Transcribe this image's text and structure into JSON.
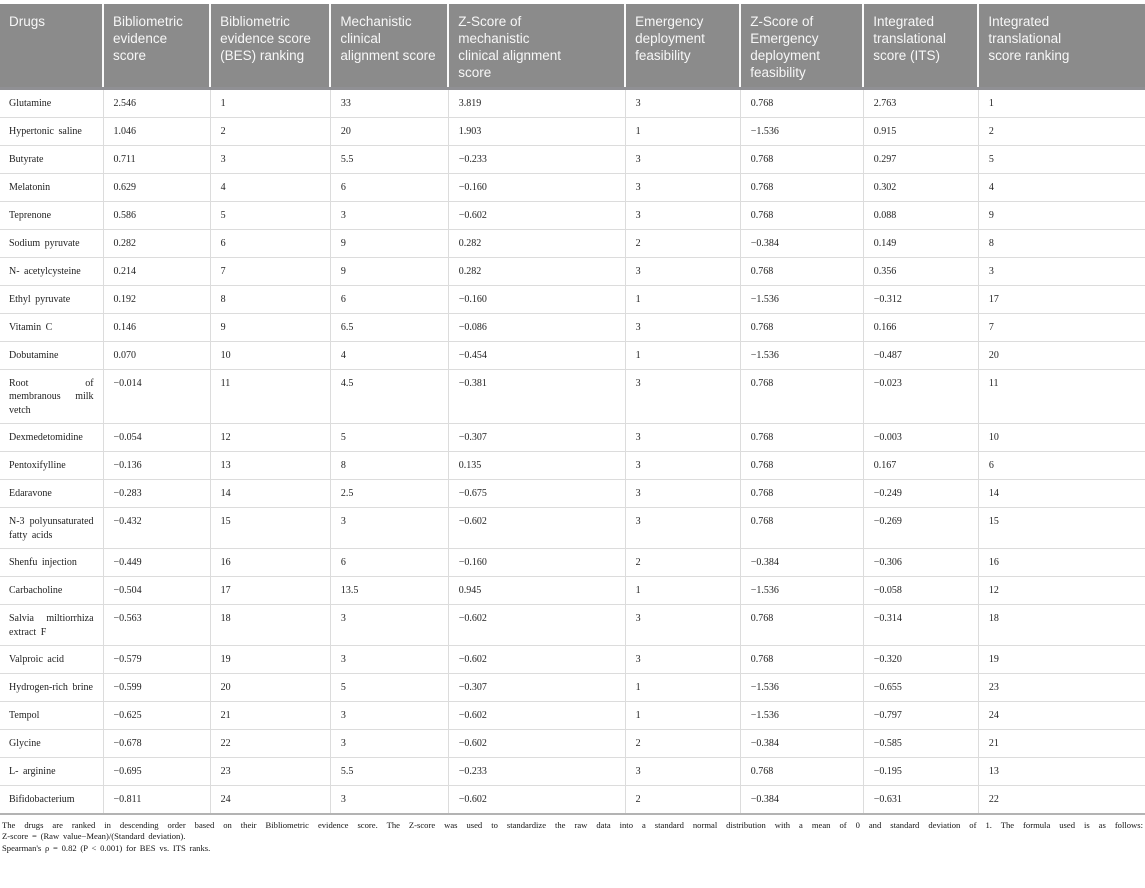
{
  "table": {
    "columns": [
      "Drugs",
      "Bibliometric\nevidence score",
      "Bibliometric\nevidence score\n(BES) ranking",
      "Mechanistic\nclinical\nalignment score",
      "Z-Score of\nmechanistic\nclinical alignment\nscore",
      "Emergency\ndeployment\nfeasibility",
      "Z-Score of\nEmergency\ndeployment\nfeasibility",
      "Integrated\ntranslational\nscore (ITS)",
      "Integrated\ntranslational\nscore ranking"
    ],
    "rows": [
      [
        "Glutamine",
        "2.546",
        "1",
        "33",
        "3.819",
        "3",
        "0.768",
        "2.763",
        "1"
      ],
      [
        "Hypertonic saline",
        "1.046",
        "2",
        "20",
        "1.903",
        "1",
        "−1.536",
        "0.915",
        "2"
      ],
      [
        "Butyrate",
        "0.711",
        "3",
        "5.5",
        "−0.233",
        "3",
        "0.768",
        "0.297",
        "5"
      ],
      [
        "Melatonin",
        "0.629",
        "4",
        "6",
        "−0.160",
        "3",
        "0.768",
        "0.302",
        "4"
      ],
      [
        "Teprenone",
        "0.586",
        "5",
        "3",
        "−0.602",
        "3",
        "0.768",
        "0.088",
        "9"
      ],
      [
        "Sodium pyruvate",
        "0.282",
        "6",
        "9",
        "0.282",
        "2",
        "−0.384",
        "0.149",
        "8"
      ],
      [
        "N- acetylcysteine",
        "0.214",
        "7",
        "9",
        "0.282",
        "3",
        "0.768",
        "0.356",
        "3"
      ],
      [
        "Ethyl pyruvate",
        "0.192",
        "8",
        "6",
        "−0.160",
        "1",
        "−1.536",
        "−0.312",
        "17"
      ],
      [
        "Vitamin C",
        "0.146",
        "9",
        "6.5",
        "−0.086",
        "3",
        "0.768",
        "0.166",
        "7"
      ],
      [
        "Dobutamine",
        "0.070",
        "10",
        "4",
        "−0.454",
        "1",
        "−1.536",
        "−0.487",
        "20"
      ],
      [
        "Root of membranous milk vetch",
        "−0.014",
        "11",
        "4.5",
        "−0.381",
        "3",
        "0.768",
        "−0.023",
        "11"
      ],
      [
        "Dexmedetomidine",
        "−0.054",
        "12",
        "5",
        "−0.307",
        "3",
        "0.768",
        "−0.003",
        "10"
      ],
      [
        "Pentoxifylline",
        "−0.136",
        "13",
        "8",
        "0.135",
        "3",
        "0.768",
        "0.167",
        "6"
      ],
      [
        "Edaravone",
        "−0.283",
        "14",
        "2.5",
        "−0.675",
        "3",
        "0.768",
        "−0.249",
        "14"
      ],
      [
        "N-3 polyunsaturated fatty acids",
        "−0.432",
        "15",
        "3",
        "−0.602",
        "3",
        "0.768",
        "−0.269",
        "15"
      ],
      [
        "Shenfu injection",
        "−0.449",
        "16",
        "6",
        "−0.160",
        "2",
        "−0.384",
        "−0.306",
        "16"
      ],
      [
        "Carbacholine",
        "−0.504",
        "17",
        "13.5",
        "0.945",
        "1",
        "−1.536",
        "−0.058",
        "12"
      ],
      [
        "Salvia miltiorrhiza extract F",
        "−0.563",
        "18",
        "3",
        "−0.602",
        "3",
        "0.768",
        "−0.314",
        "18"
      ],
      [
        "Valproic acid",
        "−0.579",
        "19",
        "3",
        "−0.602",
        "3",
        "0.768",
        "−0.320",
        "19"
      ],
      [
        "Hydrogen-rich brine",
        "−0.599",
        "20",
        "5",
        "−0.307",
        "1",
        "−1.536",
        "−0.655",
        "23"
      ],
      [
        "Tempol",
        "−0.625",
        "21",
        "3",
        "−0.602",
        "1",
        "−1.536",
        "−0.797",
        "24"
      ],
      [
        "Glycine",
        "−0.678",
        "22",
        "3",
        "−0.602",
        "2",
        "−0.384",
        "−0.585",
        "21"
      ],
      [
        "L- arginine",
        "−0.695",
        "23",
        "5.5",
        "−0.233",
        "3",
        "0.768",
        "−0.195",
        "13"
      ],
      [
        "Bifidobacterium",
        "−0.811",
        "24",
        "3",
        "−0.602",
        "2",
        "−0.384",
        "−0.631",
        "22"
      ]
    ]
  },
  "footnotes": {
    "line1": "The drugs are ranked in descending order based on their Bibliometric evidence score. The Z-score was used to standardize the raw data into a standard normal distribution with a mean of 0 and standard deviation of 1. The formula used is as follows:",
    "line2": "Z-score = (Raw value−Mean)/(Standard deviation).",
    "line3": "Spearman's ρ = 0.82 (P < 0.001) for BES vs. ITS ranks."
  },
  "colors": {
    "header_background": "#8b8b8b",
    "header_text": "#f7f7f7",
    "body_text": "#1f1f1f",
    "grid_line": "#dcdcdc"
  }
}
